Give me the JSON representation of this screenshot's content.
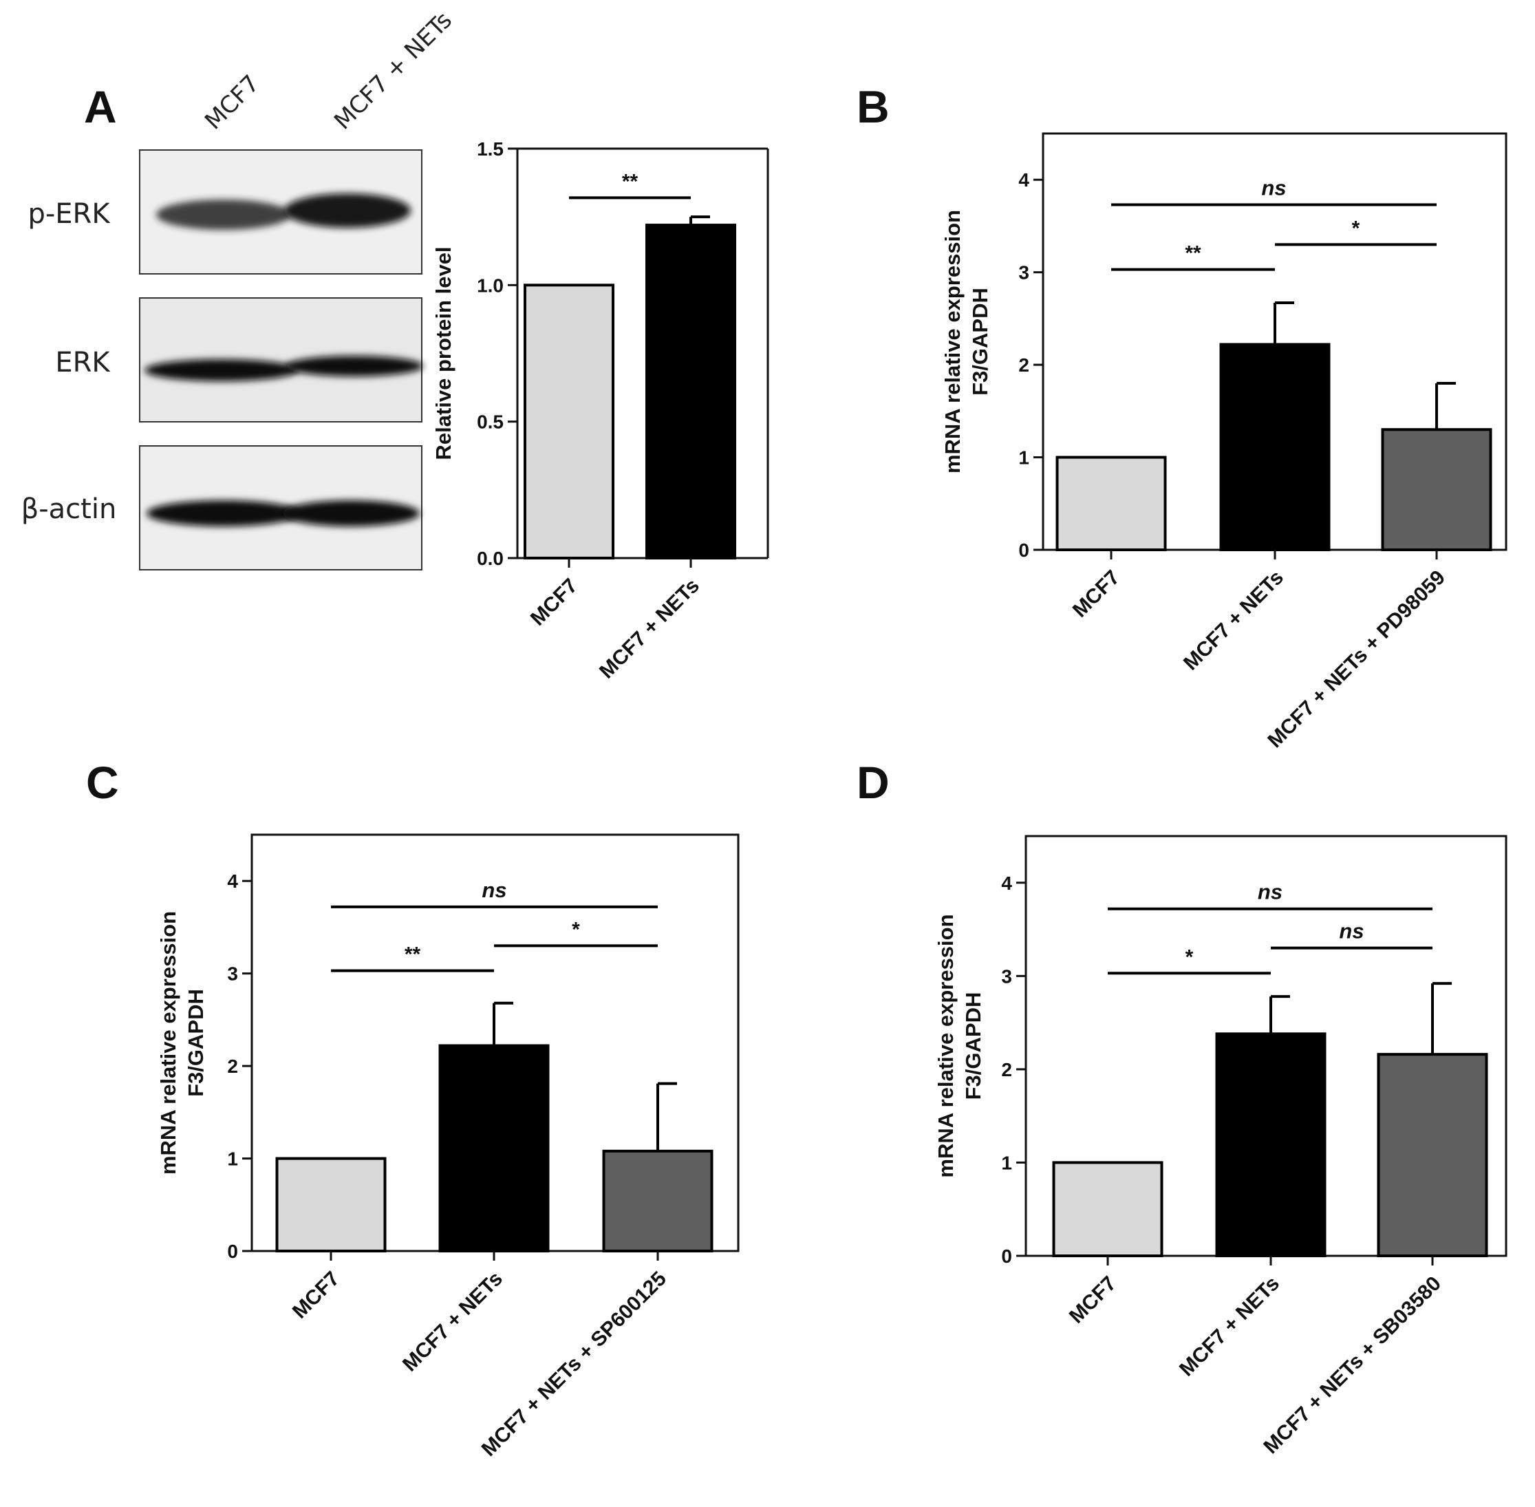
{
  "blot": {
    "panel_label": "A",
    "lanes": [
      "MCF7",
      "MCF7 + NETs"
    ],
    "rows": [
      "p-ERK",
      "ERK",
      "β-actin"
    ]
  },
  "chart_data": [
    {
      "panel_label": "A",
      "type": "bar",
      "title": "",
      "xlabel": "",
      "ylabel": "Relative protein level",
      "ylim": [
        0,
        1.5
      ],
      "yticks": [
        "0.0",
        "0.5",
        "1.0",
        "1.5"
      ],
      "categories": [
        "MCF7",
        "MCF7 + NETs"
      ],
      "values": [
        1.0,
        1.22
      ],
      "errors": [
        0,
        0.03
      ],
      "colors": [
        "#d9d9d9",
        "#000000",
        "#5f5f5f"
      ],
      "significance": [
        {
          "from": 0,
          "to": 1,
          "label": "**",
          "level": 1.32
        }
      ]
    },
    {
      "panel_label": "B",
      "type": "bar",
      "title": "",
      "xlabel": "",
      "ylabel": [
        "mRNA relative expression",
        "F3/GAPDH"
      ],
      "ylim": [
        0,
        4.5
      ],
      "yticks": [
        "0",
        "1",
        "2",
        "3",
        "4"
      ],
      "categories": [
        "MCF7",
        "MCF7 + NETs",
        "MCF7 + NETs + PD98059"
      ],
      "values": [
        1.0,
        2.22,
        1.3
      ],
      "errors": [
        0,
        0.45,
        0.5
      ],
      "colors": [
        "#d9d9d9",
        "#000000",
        "#5f5f5f"
      ],
      "significance": [
        {
          "from": 0,
          "to": 2,
          "label": "ns",
          "level": 3.73
        },
        {
          "from": 1,
          "to": 2,
          "label": "*",
          "level": 3.3
        },
        {
          "from": 0,
          "to": 1,
          "label": "**",
          "level": 3.03
        }
      ]
    },
    {
      "panel_label": "C",
      "type": "bar",
      "title": "",
      "xlabel": "",
      "ylabel": [
        "mRNA relative expression",
        "F3/GAPDH"
      ],
      "ylim": [
        0,
        4.5
      ],
      "yticks": [
        "0",
        "1",
        "2",
        "3",
        "4"
      ],
      "categories": [
        "MCF7",
        "MCF7 + NETs",
        "MCF7 + NETs + SP600125"
      ],
      "values": [
        1.0,
        2.22,
        1.08
      ],
      "errors": [
        0,
        0.46,
        0.73
      ],
      "colors": [
        "#d9d9d9",
        "#000000",
        "#5f5f5f"
      ],
      "significance": [
        {
          "from": 0,
          "to": 2,
          "label": "ns",
          "level": 3.72
        },
        {
          "from": 1,
          "to": 2,
          "label": "*",
          "level": 3.3
        },
        {
          "from": 0,
          "to": 1,
          "label": "**",
          "level": 3.03
        }
      ]
    },
    {
      "panel_label": "D",
      "type": "bar",
      "title": "",
      "xlabel": "",
      "ylabel": [
        "mRNA relative expression",
        "F3/GAPDH"
      ],
      "ylim": [
        0,
        4.5
      ],
      "yticks": [
        "0",
        "1",
        "2",
        "3",
        "4"
      ],
      "categories": [
        "MCF7",
        "MCF7 + NETs",
        "MCF7 + NETs + SB03580"
      ],
      "values": [
        1.0,
        2.38,
        2.16
      ],
      "errors": [
        0,
        0.4,
        0.76
      ],
      "colors": [
        "#d9d9d9",
        "#000000",
        "#5f5f5f"
      ],
      "significance": [
        {
          "from": 0,
          "to": 2,
          "label": "ns",
          "level": 3.72
        },
        {
          "from": 1,
          "to": 2,
          "label": "ns",
          "level": 3.3
        },
        {
          "from": 0,
          "to": 1,
          "label": "*",
          "level": 3.03
        }
      ]
    }
  ]
}
